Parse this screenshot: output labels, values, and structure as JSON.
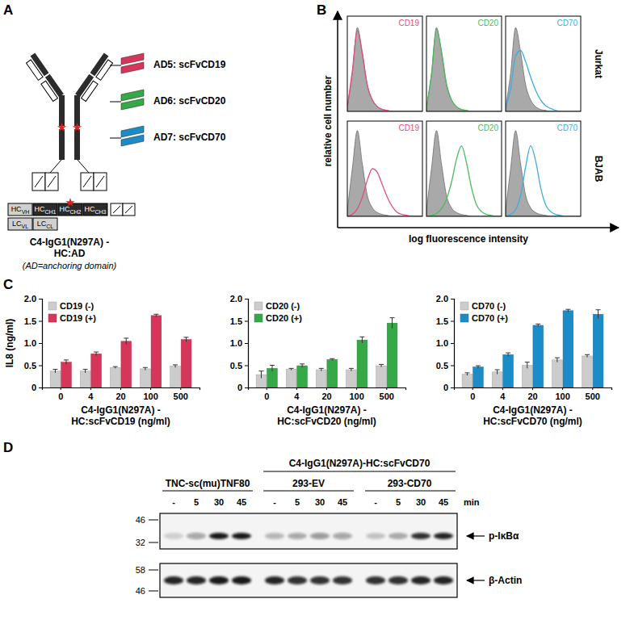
{
  "panel_labels": [
    "A",
    "B",
    "C",
    "D"
  ],
  "antibody": {
    "anchoring_domains": [
      {
        "label": "AD5: scFvCD19",
        "color": "#d6365a"
      },
      {
        "label": "AD6: scFvCD20",
        "color": "#35a847"
      },
      {
        "label": "AD7: scFvCD70",
        "color": "#1b8cc8"
      }
    ],
    "heavy_chain": [
      {
        "main": "HC",
        "sub": "VH"
      },
      {
        "main": "HC",
        "sub": "CH1"
      },
      {
        "main": "HC",
        "sub": "CH2"
      },
      {
        "main": "HC",
        "sub": "CH3"
      }
    ],
    "light_chain": [
      {
        "main": "LC",
        "sub": "VL"
      },
      {
        "main": "LC",
        "sub": "CL"
      }
    ],
    "name": [
      "C4-IgG1(N297A) -",
      "HC:AD"
    ],
    "note": "(AD=anchoring domain)"
  },
  "flow": {
    "rows": [
      "Jurkat",
      "BJAB"
    ],
    "y_label": "relative cell number",
    "x_label": "log fluorescence intensity"
  },
  "chart_data": [
    {
      "type": "line",
      "x": [
        0,
        1,
        2,
        3,
        4,
        5,
        6,
        7,
        8,
        9,
        10,
        11,
        12,
        13,
        14,
        15
      ],
      "xlim": [
        0,
        15
      ],
      "ylim": [
        0,
        100
      ],
      "tick_labels": false,
      "legend": "top-right",
      "series": [
        {
          "name": "CD19",
          "color": "#e0507a",
          "type": "line",
          "values": [
            5,
            42,
            85,
            60,
            27,
            12,
            5,
            2,
            1,
            0,
            0,
            0,
            0,
            0,
            0,
            0
          ]
        },
        {
          "color": "#9a9a9a",
          "type": "area",
          "values": [
            4,
            40,
            88,
            62,
            28,
            12,
            5,
            2,
            1,
            0,
            0,
            0,
            0,
            0,
            0,
            0
          ]
        }
      ]
    },
    {
      "type": "line",
      "x": [
        0,
        1,
        2,
        3,
        4,
        5,
        6,
        7,
        8,
        9,
        10,
        11,
        12,
        13,
        14,
        15
      ],
      "xlim": [
        0,
        15
      ],
      "ylim": [
        0,
        100
      ],
      "tick_labels": false,
      "legend": "top-right",
      "series": [
        {
          "name": "CD20",
          "color": "#4cbb5c",
          "type": "line",
          "values": [
            4,
            38,
            86,
            63,
            29,
            12,
            5,
            2,
            1,
            0,
            0,
            0,
            0,
            0,
            0,
            0
          ]
        },
        {
          "color": "#9a9a9a",
          "type": "area",
          "values": [
            4,
            40,
            88,
            62,
            28,
            12,
            5,
            2,
            1,
            0,
            0,
            0,
            0,
            0,
            0,
            0
          ]
        }
      ]
    },
    {
      "type": "line",
      "x": [
        0,
        1,
        2,
        3,
        4,
        5,
        6,
        7,
        8,
        9,
        10,
        11,
        12,
        13,
        14,
        15
      ],
      "xlim": [
        0,
        15
      ],
      "ylim": [
        0,
        100
      ],
      "tick_labels": false,
      "legend": "top-right",
      "series": [
        {
          "name": "CD70",
          "color": "#3aaee0",
          "type": "line",
          "values": [
            3,
            24,
            58,
            64,
            52,
            36,
            22,
            12,
            6,
            3,
            1,
            0,
            0,
            0,
            0,
            0
          ]
        },
        {
          "color": "#9a9a9a",
          "type": "area",
          "values": [
            4,
            40,
            88,
            62,
            28,
            12,
            5,
            2,
            1,
            0,
            0,
            0,
            0,
            0,
            0,
            0
          ]
        }
      ]
    },
    {
      "type": "line",
      "x": [
        0,
        1,
        2,
        3,
        4,
        5,
        6,
        7,
        8,
        9,
        10,
        11,
        12,
        13,
        14,
        15
      ],
      "xlim": [
        0,
        15
      ],
      "ylim": [
        0,
        100
      ],
      "tick_labels": false,
      "legend": "top-right",
      "series": [
        {
          "name": "CD19",
          "color": "#e0507a",
          "type": "line",
          "values": [
            0,
            2,
            8,
            20,
            38,
            50,
            46,
            33,
            20,
            10,
            4,
            2,
            1,
            0,
            0,
            0
          ]
        },
        {
          "color": "#9a9a9a",
          "type": "area",
          "values": [
            6,
            50,
            90,
            55,
            22,
            9,
            4,
            2,
            1,
            0,
            0,
            0,
            0,
            0,
            0,
            0
          ]
        }
      ]
    },
    {
      "type": "line",
      "x": [
        0,
        1,
        2,
        3,
        4,
        5,
        6,
        7,
        8,
        9,
        10,
        11,
        12,
        13,
        14,
        15
      ],
      "xlim": [
        0,
        15
      ],
      "ylim": [
        0,
        100
      ],
      "tick_labels": false,
      "legend": "top-right",
      "series": [
        {
          "name": "CD20",
          "color": "#4cbb5c",
          "type": "line",
          "values": [
            0,
            1,
            3,
            8,
            18,
            36,
            60,
            74,
            56,
            30,
            12,
            5,
            2,
            1,
            0,
            0
          ]
        },
        {
          "color": "#9a9a9a",
          "type": "area",
          "values": [
            6,
            50,
            90,
            55,
            22,
            9,
            4,
            2,
            1,
            0,
            0,
            0,
            0,
            0,
            0,
            0
          ]
        }
      ]
    },
    {
      "type": "line",
      "x": [
        0,
        1,
        2,
        3,
        4,
        5,
        6,
        7,
        8,
        9,
        10,
        11,
        12,
        13,
        14,
        15
      ],
      "xlim": [
        0,
        15
      ],
      "ylim": [
        0,
        100
      ],
      "tick_labels": false,
      "legend": "top-right",
      "series": [
        {
          "name": "CD70",
          "color": "#3aaee0",
          "type": "line",
          "values": [
            0,
            2,
            7,
            22,
            52,
            74,
            58,
            30,
            12,
            5,
            2,
            1,
            0,
            0,
            0,
            0
          ]
        },
        {
          "color": "#9a9a9a",
          "type": "area",
          "values": [
            6,
            50,
            90,
            55,
            22,
            9,
            4,
            2,
            1,
            0,
            0,
            0,
            0,
            0,
            0,
            0
          ]
        }
      ]
    },
    {
      "type": "bar",
      "categories": [
        "0",
        "4",
        "20",
        "100",
        "500"
      ],
      "ylim": [
        0,
        2
      ],
      "yticks": [
        0,
        0.5,
        {
          "value": 1,
          "label": "1.0"
        },
        1.5,
        {
          "value": 2,
          "label": "2.0"
        }
      ],
      "y_label": "IL8 (ng/ml)",
      "x_label": [
        "C4-IgG1(N297A) -",
        "HC:scFvCD19 (ng/ml)"
      ],
      "legend": "top-left",
      "series": [
        {
          "name": "CD19 (-)",
          "color": "#cccccc",
          "values": [
            0.37,
            0.37,
            0.45,
            0.42,
            0.48
          ],
          "errors": [
            0.04,
            0.04,
            0.02,
            0.03,
            0.03
          ]
        },
        {
          "name": "CD19 (+)",
          "color": "#d6365a",
          "values": [
            0.57,
            0.76,
            1.04,
            1.62,
            1.08
          ],
          "errors": [
            0.05,
            0.04,
            0.07,
            0.03,
            0.05
          ]
        }
      ]
    },
    {
      "type": "bar",
      "categories": [
        "0",
        "4",
        "20",
        "100",
        "500"
      ],
      "ylim": [
        0,
        2
      ],
      "yticks": [
        0,
        0.5,
        {
          "value": 1,
          "label": "1.0"
        },
        1.5,
        {
          "value": 2,
          "label": "2.0"
        }
      ],
      "x_label": [
        "C4-IgG1(N297A) -",
        "HC:scFvCD20 (ng/ml)"
      ],
      "legend": "top-left",
      "series": [
        {
          "name": "CD20 (-)",
          "color": "#cccccc",
          "values": [
            0.29,
            0.41,
            0.4,
            0.4,
            0.49
          ],
          "errors": [
            0.08,
            0.02,
            0.03,
            0.03,
            0.03
          ]
        },
        {
          "name": "CD20 (+)",
          "color": "#35a847",
          "values": [
            0.43,
            0.49,
            0.63,
            1.07,
            1.45
          ],
          "errors": [
            0.07,
            0.04,
            0.02,
            0.07,
            0.12
          ]
        }
      ]
    },
    {
      "type": "bar",
      "categories": [
        "0",
        "4",
        "20",
        "100",
        "500"
      ],
      "ylim": [
        0,
        2
      ],
      "yticks": [
        0,
        0.5,
        {
          "value": 1,
          "label": "1.0"
        },
        1.5,
        {
          "value": 2,
          "label": "2.0"
        }
      ],
      "x_label": [
        "C4-IgG1(N297A) -",
        "HC:scFvCD70 (ng/ml)"
      ],
      "legend": "top-left",
      "series": [
        {
          "name": "CD70 (-)",
          "color": "#cccccc",
          "values": [
            0.3,
            0.35,
            0.5,
            0.62,
            0.71
          ],
          "errors": [
            0.03,
            0.05,
            0.07,
            0.05,
            0.03
          ]
        },
        {
          "name": "CD70 (+)",
          "color": "#1b8cc8",
          "values": [
            0.46,
            0.74,
            1.4,
            1.73,
            1.65
          ],
          "errors": [
            0.03,
            0.04,
            0.03,
            0.03,
            0.1
          ]
        }
      ]
    }
  ],
  "blot": {
    "treatment_labels": [
      "TNC-sc(mu)TNF80",
      "C4-IgG1(N297A)-HC:scFvCD70"
    ],
    "cell_labels": [
      "293-EV",
      "293-CD70"
    ],
    "lanes": [
      "-",
      "5",
      "30",
      "45",
      "-",
      "5",
      "30",
      "45",
      "-",
      "5",
      "30",
      "45"
    ],
    "time_unit": "min",
    "rows": [
      {
        "label": "p-IκBα",
        "markers": [
          46,
          32
        ],
        "intensity": [
          0.15,
          0.35,
          0.95,
          0.95,
          0.25,
          0.3,
          0.4,
          0.35,
          0.2,
          0.3,
          0.85,
          0.9
        ]
      },
      {
        "label": "β-Actin",
        "markers": [
          58,
          46
        ],
        "intensity": [
          0.9,
          0.9,
          0.95,
          0.95,
          0.9,
          0.85,
          0.85,
          0.85,
          0.85,
          0.85,
          0.9,
          0.9
        ]
      }
    ]
  }
}
